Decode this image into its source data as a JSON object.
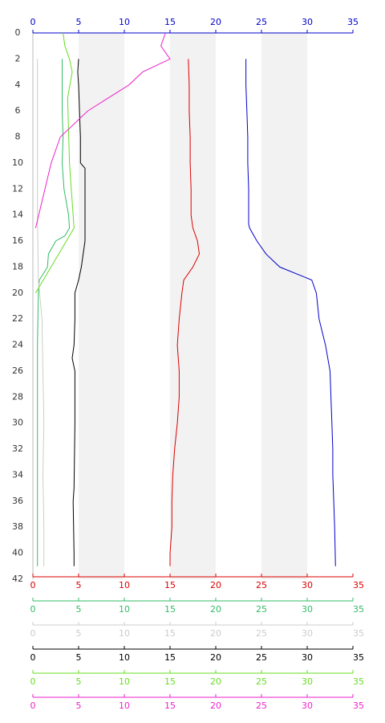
{
  "chart_data": {
    "type": "line",
    "ylim": [
      0,
      42
    ],
    "yticks": [
      0,
      2,
      4,
      6,
      8,
      10,
      12,
      14,
      16,
      18,
      20,
      22,
      24,
      26,
      28,
      30,
      32,
      34,
      36,
      38,
      40,
      42
    ],
    "shaded_ranges": [
      [
        5,
        10
      ],
      [
        15,
        20
      ],
      [
        25,
        30
      ]
    ],
    "shade_color": "#f2f2f2",
    "x_axes": [
      {
        "position": "top",
        "color": "#0000cc",
        "xlim": [
          0,
          35
        ],
        "xticks": [
          0,
          5,
          10,
          15,
          20,
          25,
          30,
          35
        ]
      },
      {
        "position": "bottom",
        "color": "#dd0000",
        "xlim": [
          0,
          35
        ],
        "xticks": [
          0,
          5,
          10,
          15,
          20,
          25,
          30,
          35
        ]
      },
      {
        "position": "bottom",
        "color": "#33bb66",
        "xlim": [
          0,
          35
        ],
        "xticks": [
          0,
          5,
          10,
          15,
          20,
          25,
          30,
          35
        ]
      },
      {
        "position": "bottom",
        "color": "#cccccc",
        "xlim": [
          0,
          35
        ],
        "xticks": [
          0,
          5,
          10,
          15,
          20,
          25,
          30,
          35
        ]
      },
      {
        "position": "bottom",
        "color": "#000000",
        "xlim": [
          0,
          35
        ],
        "xticks": [
          0,
          5,
          10,
          15,
          20,
          25,
          30,
          35
        ]
      },
      {
        "position": "bottom",
        "color": "#66dd22",
        "xlim": [
          0,
          35
        ],
        "xticks": [
          0,
          5,
          10,
          15,
          20,
          25,
          30,
          35
        ]
      },
      {
        "position": "bottom",
        "color": "#ee22cc",
        "xlim": [
          0,
          35
        ],
        "xticks": [
          0,
          5,
          10,
          15,
          20,
          25,
          30,
          35
        ]
      }
    ],
    "series": [
      {
        "color": "#0000cc",
        "axis": 0,
        "values": [
          23.3,
          23.3,
          23.4,
          23.5,
          23.5,
          23.6,
          23.6,
          23.6,
          23.7,
          24.5,
          25.5,
          27,
          30.5,
          31,
          31.3,
          32,
          32.5,
          32.6,
          32.7,
          32.8,
          32.8,
          32.9,
          33,
          33.1
        ],
        "depth": [
          2,
          4,
          6,
          8,
          10,
          12,
          14,
          14.7,
          15,
          16,
          17,
          18,
          19,
          20,
          22,
          24,
          26,
          28,
          30,
          32,
          34,
          36,
          38,
          41
        ]
      },
      {
        "color": "#dd0000",
        "axis": 1,
        "values": [
          17,
          17.1,
          17.1,
          17.2,
          17.2,
          17.3,
          17.3,
          17.5,
          18,
          18.2,
          17.5,
          16.5,
          16.3,
          16,
          15.8,
          16,
          16,
          15.8,
          15.5,
          15.3,
          15.2,
          15.2,
          15,
          15
        ],
        "depth": [
          2,
          4,
          6,
          8,
          10,
          12,
          14,
          15,
          16,
          17,
          18,
          19,
          20,
          22,
          24,
          26,
          28,
          30,
          32,
          34,
          36,
          38,
          40,
          41
        ]
      },
      {
        "color": "#33bb66",
        "axis": 2,
        "values": [
          3.2,
          3.2,
          3.2,
          3.3,
          3.2,
          3.4,
          3.9,
          4,
          3.5,
          2.5,
          1.7,
          1.6,
          0.7,
          0.6,
          0.5,
          0.5,
          0.5,
          0.5,
          0.5,
          0.5
        ],
        "depth": [
          2,
          4,
          6,
          8,
          10,
          12,
          14,
          15,
          15.6,
          16,
          17,
          18,
          19,
          20,
          24,
          28,
          32,
          36,
          40,
          41
        ]
      },
      {
        "color": "#cccccc",
        "axis": 3,
        "values": [
          0.5,
          0.5,
          0.5,
          0.5,
          0.6,
          1,
          1.1,
          1.2,
          1.1,
          1.2,
          1.2
        ],
        "depth": [
          2,
          6,
          10,
          14,
          19,
          22,
          26,
          30,
          34,
          38,
          41
        ]
      },
      {
        "color": "#000000",
        "axis": 4,
        "values": [
          5,
          4.9,
          5,
          5.1,
          5.2,
          5.2,
          5.7,
          5.7,
          5.7,
          5.3,
          5,
          4.6,
          4.6,
          4.5,
          4.3,
          4.6,
          4.6,
          4.5,
          4.4,
          4.5,
          4.5
        ],
        "depth": [
          2,
          3,
          4,
          6,
          8,
          10,
          10.4,
          14,
          16,
          18,
          19,
          20,
          22,
          24,
          25,
          26,
          30,
          35,
          36,
          40,
          41
        ]
      },
      {
        "color": "#66dd22",
        "axis": 5,
        "values": [
          3.3,
          3.5,
          4,
          4.3,
          3.8,
          4,
          4.5,
          0.3
        ],
        "depth": [
          0,
          1,
          2,
          3,
          5,
          10,
          15,
          20
        ]
      },
      {
        "color": "#ee22cc",
        "axis": 6,
        "values": [
          14.5,
          14,
          15,
          12,
          10.5,
          6,
          3,
          2,
          0.3
        ],
        "depth": [
          0,
          1,
          2,
          3,
          4,
          6,
          8,
          10,
          15
        ]
      }
    ]
  }
}
